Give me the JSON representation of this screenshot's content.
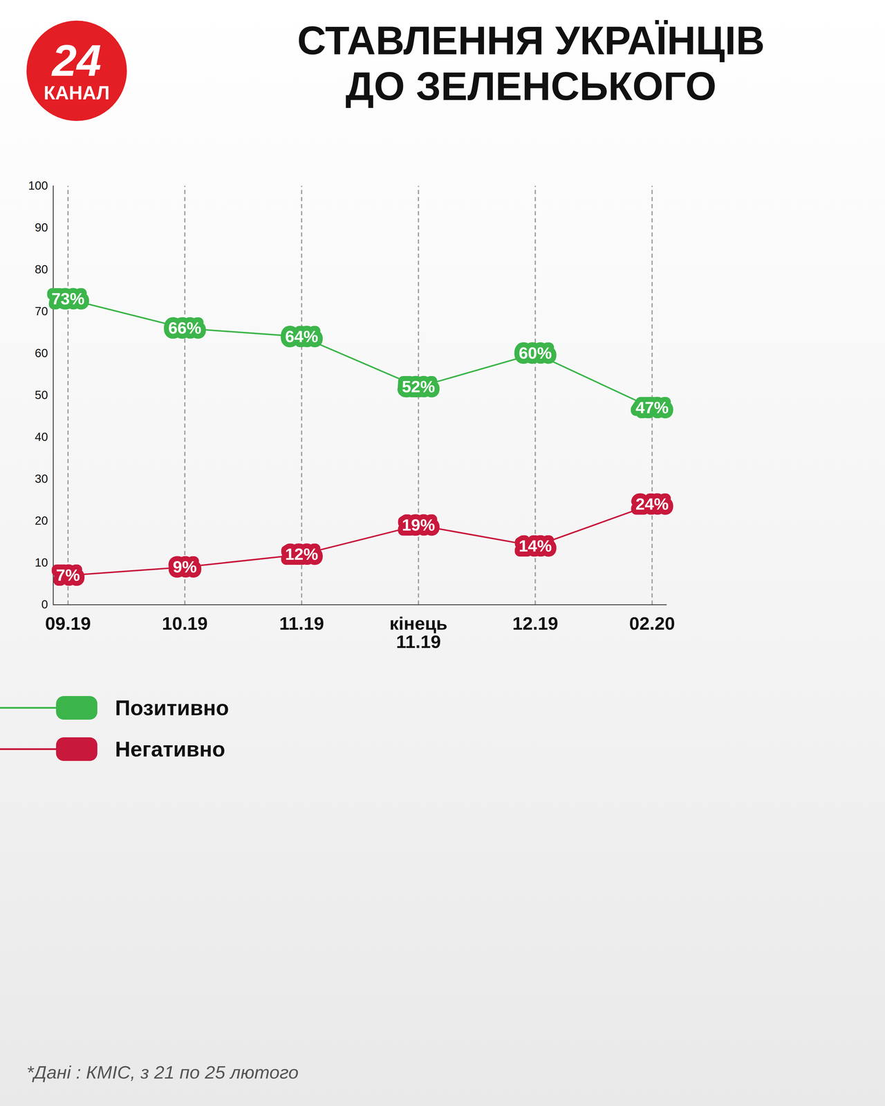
{
  "chart_data": {
    "type": "line",
    "title": "СТАВЛЕННЯ УКРАЇНЦІВ ДО ЗЕЛЕНСЬКОГО",
    "logo": {
      "number": "24",
      "name": "КАНАЛ"
    },
    "caption": "*Дані : КМІС, з 21 по 25 лютого",
    "categories": [
      "09.19",
      "10.19",
      "11.19",
      "кінець 11.19",
      "12.19",
      "02.20"
    ],
    "series": [
      {
        "name": "Позитивно",
        "color": "#3cb54a",
        "values": [
          73,
          66,
          64,
          52,
          60,
          47
        ],
        "value_labels": [
          "73%",
          "66%",
          "64%",
          "52%",
          "60%",
          "47%"
        ]
      },
      {
        "name": "Негативно",
        "color": "#c8183c",
        "values": [
          7,
          9,
          12,
          19,
          14,
          24
        ],
        "value_labels": [
          "7%",
          "9%",
          "12%",
          "19%",
          "14%",
          "24%"
        ]
      }
    ],
    "ylim": [
      0,
      100
    ],
    "yticks": [
      0,
      10,
      20,
      30,
      40,
      50,
      60,
      70,
      80,
      90,
      100
    ],
    "grid": "x",
    "data_labels": true,
    "legend": "bottom-left"
  }
}
